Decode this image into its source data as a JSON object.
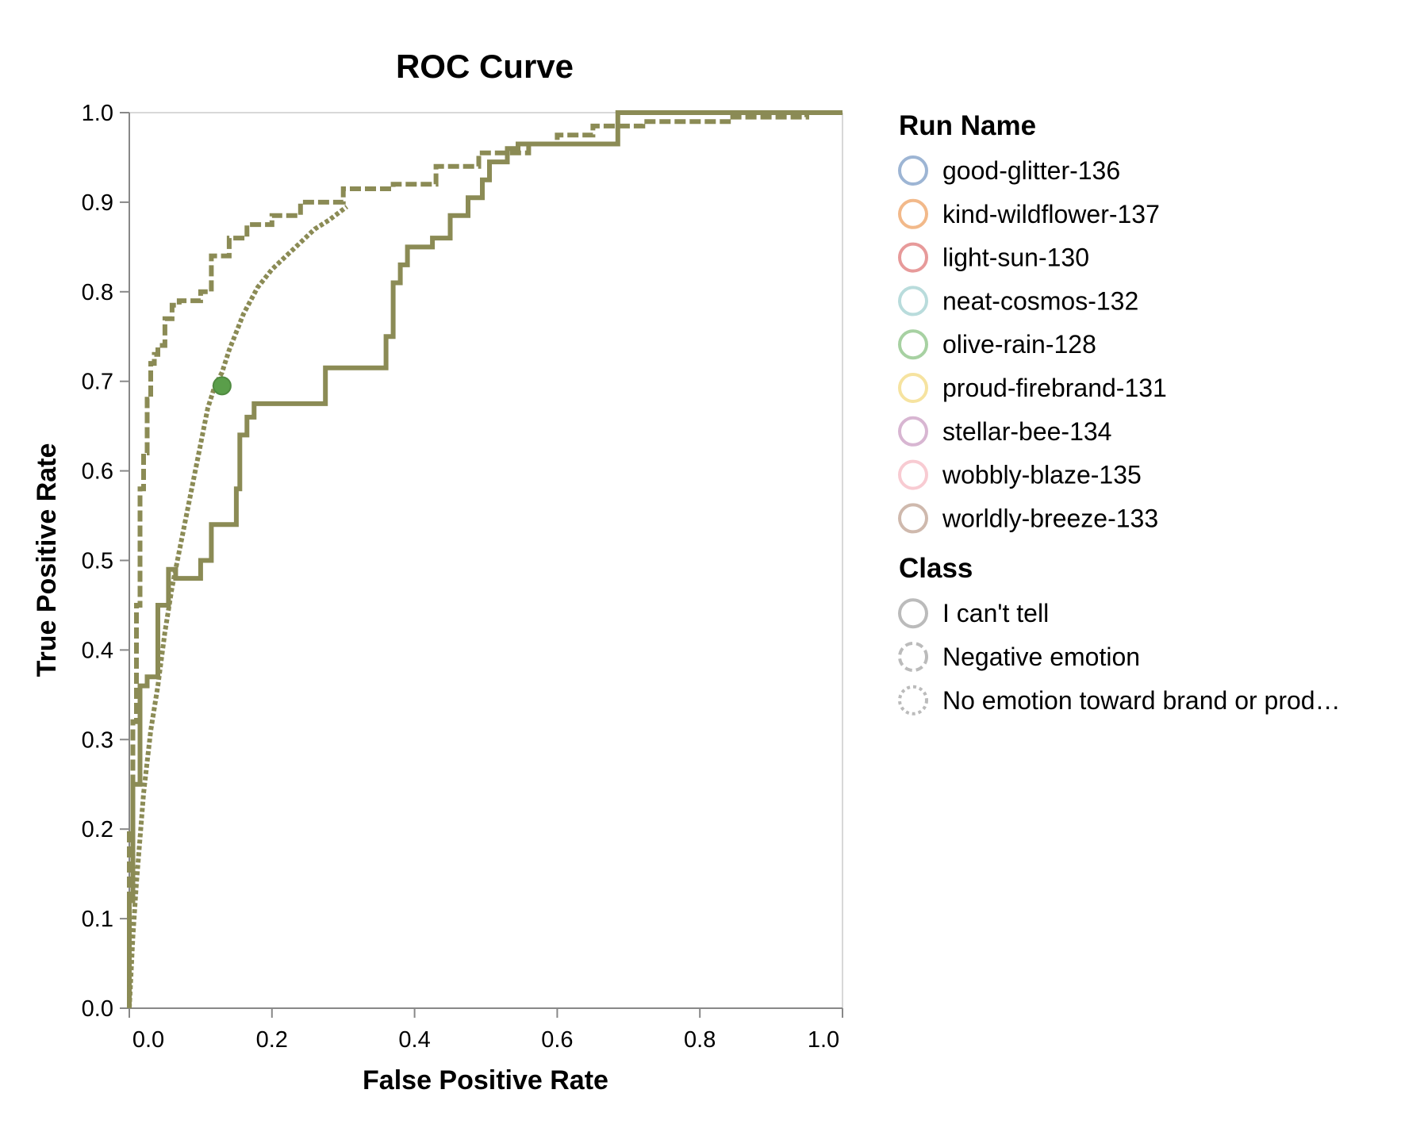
{
  "chart_data": {
    "type": "line",
    "title": "ROC Curve",
    "xlabel": "False Positive Rate",
    "ylabel": "True Positive Rate",
    "xlim": [
      0,
      1
    ],
    "ylim": [
      0,
      1
    ],
    "x_ticks": [
      "0.0",
      "0.2",
      "0.4",
      "0.6",
      "0.8",
      "1.0"
    ],
    "y_ticks": [
      "0.0",
      "0.1",
      "0.2",
      "0.3",
      "0.4",
      "0.5",
      "0.6",
      "0.7",
      "0.8",
      "0.9",
      "1.0"
    ],
    "grid": false,
    "legend_placement": "right",
    "line_color": "#8b8b55",
    "series": [
      {
        "class": "I can't tell",
        "style": "solid",
        "step": true,
        "x": [
          0.0,
          0.0,
          0.005,
          0.005,
          0.015,
          0.015,
          0.025,
          0.025,
          0.04,
          0.04,
          0.055,
          0.055,
          0.065,
          0.065,
          0.1,
          0.1,
          0.115,
          0.115,
          0.15,
          0.15,
          0.155,
          0.155,
          0.165,
          0.165,
          0.175,
          0.175,
          0.275,
          0.275,
          0.36,
          0.36,
          0.37,
          0.37,
          0.38,
          0.38,
          0.39,
          0.39,
          0.425,
          0.425,
          0.45,
          0.45,
          0.475,
          0.475,
          0.495,
          0.495,
          0.505,
          0.505,
          0.53,
          0.53,
          0.545,
          0.545,
          0.555,
          0.555,
          0.585,
          0.585,
          0.685,
          0.685,
          1.0
        ],
        "y": [
          0.0,
          0.12,
          0.12,
          0.25,
          0.25,
          0.36,
          0.36,
          0.37,
          0.37,
          0.45,
          0.45,
          0.49,
          0.49,
          0.48,
          0.48,
          0.5,
          0.5,
          0.54,
          0.54,
          0.58,
          0.58,
          0.64,
          0.64,
          0.66,
          0.66,
          0.675,
          0.675,
          0.715,
          0.715,
          0.75,
          0.75,
          0.81,
          0.81,
          0.83,
          0.83,
          0.85,
          0.85,
          0.86,
          0.86,
          0.885,
          0.885,
          0.905,
          0.905,
          0.925,
          0.925,
          0.945,
          0.945,
          0.96,
          0.96,
          0.965,
          0.965,
          0.965,
          0.965,
          0.965,
          0.965,
          1.0,
          1.0
        ]
      },
      {
        "class": "Negative emotion",
        "style": "dashed",
        "step": true,
        "x": [
          0.0,
          0.0,
          0.005,
          0.005,
          0.01,
          0.01,
          0.015,
          0.015,
          0.02,
          0.02,
          0.025,
          0.025,
          0.03,
          0.03,
          0.035,
          0.035,
          0.04,
          0.04,
          0.05,
          0.05,
          0.06,
          0.06,
          0.07,
          0.07,
          0.1,
          0.1,
          0.115,
          0.115,
          0.14,
          0.14,
          0.165,
          0.165,
          0.2,
          0.2,
          0.24,
          0.24,
          0.3,
          0.3,
          0.37,
          0.37,
          0.43,
          0.43,
          0.49,
          0.49,
          0.56,
          0.56,
          0.6,
          0.6,
          0.65,
          0.65,
          0.72,
          0.72,
          0.84,
          0.84,
          0.95,
          0.95,
          1.0
        ],
        "y": [
          0.0,
          0.2,
          0.2,
          0.32,
          0.32,
          0.45,
          0.45,
          0.58,
          0.58,
          0.62,
          0.62,
          0.68,
          0.68,
          0.72,
          0.72,
          0.73,
          0.73,
          0.74,
          0.74,
          0.77,
          0.77,
          0.785,
          0.785,
          0.79,
          0.79,
          0.8,
          0.8,
          0.84,
          0.84,
          0.86,
          0.86,
          0.875,
          0.875,
          0.885,
          0.885,
          0.9,
          0.9,
          0.915,
          0.915,
          0.92,
          0.92,
          0.94,
          0.94,
          0.955,
          0.955,
          0.965,
          0.965,
          0.975,
          0.975,
          0.985,
          0.985,
          0.99,
          0.99,
          0.995,
          0.995,
          1.0,
          1.0
        ]
      },
      {
        "class": "No emotion toward brand or prod…",
        "style": "dotted",
        "step": false,
        "x": [
          0.0,
          0.005,
          0.01,
          0.02,
          0.03,
          0.04,
          0.05,
          0.06,
          0.07,
          0.08,
          0.09,
          0.1,
          0.11,
          0.12,
          0.13,
          0.14,
          0.15,
          0.16,
          0.17,
          0.18,
          0.2,
          0.22,
          0.24,
          0.26,
          0.28,
          0.305
        ],
        "y": [
          0.0,
          0.08,
          0.14,
          0.24,
          0.31,
          0.36,
          0.42,
          0.47,
          0.51,
          0.55,
          0.59,
          0.63,
          0.67,
          0.695,
          0.71,
          0.735,
          0.755,
          0.775,
          0.79,
          0.805,
          0.825,
          0.84,
          0.855,
          0.87,
          0.88,
          0.895
        ]
      }
    ],
    "marker": {
      "x": 0.13,
      "y": 0.695,
      "color": "#5a9e4a"
    },
    "legends": [
      {
        "title": "Run Name",
        "items": [
          {
            "label": "good-glitter-136",
            "color": "#9db5d4"
          },
          {
            "label": "kind-wildflower-137",
            "color": "#f2b98a"
          },
          {
            "label": "light-sun-130",
            "color": "#e79a9a"
          },
          {
            "label": "neat-cosmos-132",
            "color": "#b9dcdc"
          },
          {
            "label": "olive-rain-128",
            "color": "#a7d1a2"
          },
          {
            "label": "proud-firebrand-131",
            "color": "#f6e3a0"
          },
          {
            "label": "stellar-bee-134",
            "color": "#d8b6d2"
          },
          {
            "label": "wobbly-blaze-135",
            "color": "#f8cbd2"
          },
          {
            "label": "worldly-breeze-133",
            "color": "#cfb9ad"
          }
        ]
      },
      {
        "title": "Class",
        "items": [
          {
            "label": "I can't tell",
            "color": "#bbbbbb",
            "style": "solid"
          },
          {
            "label": "Negative emotion",
            "color": "#bbbbbb",
            "style": "dashed"
          },
          {
            "label": "No emotion toward brand or prod…",
            "color": "#bbbbbb",
            "style": "dotted"
          }
        ]
      }
    ]
  }
}
